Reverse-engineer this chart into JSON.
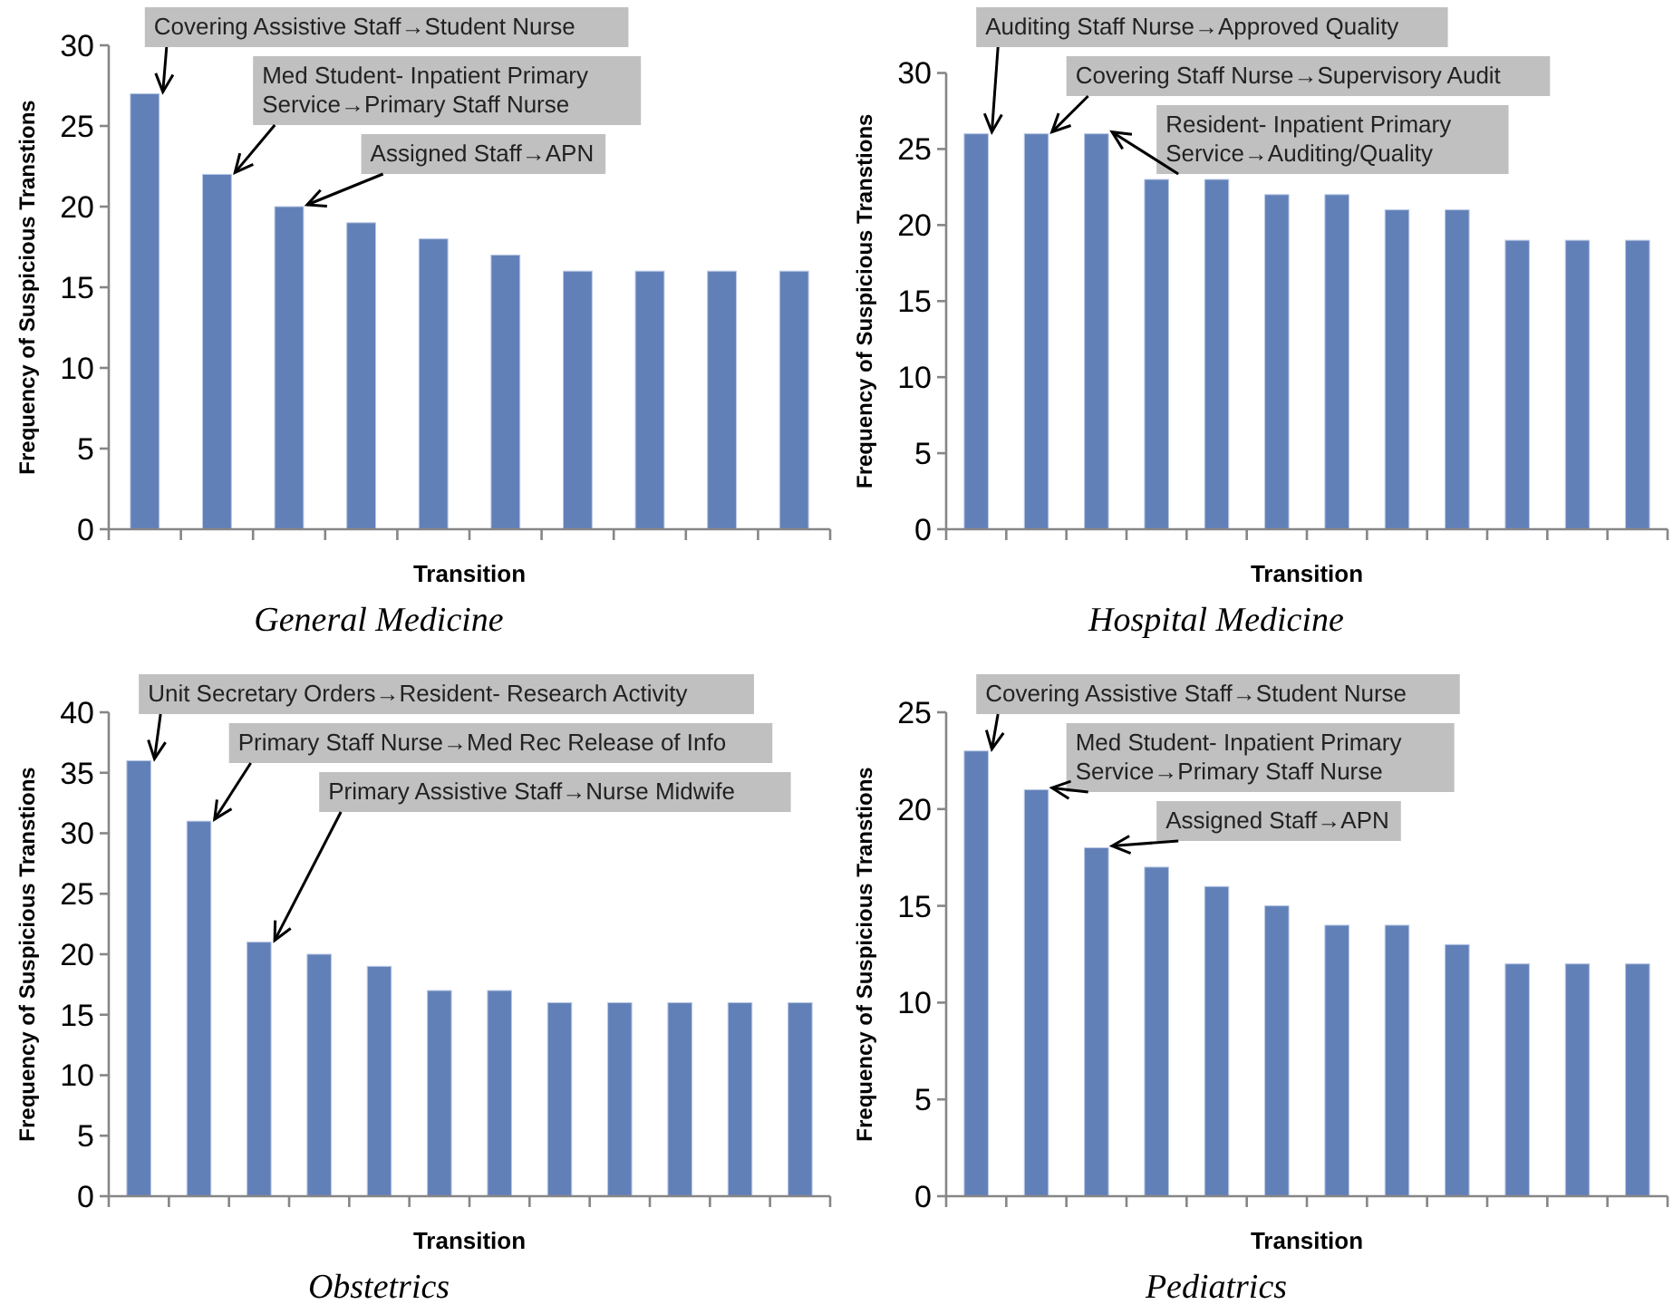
{
  "chart_data": [
    {
      "type": "bar",
      "title": "General Medicine",
      "xlabel": "Transition",
      "ylabel": "Frequency of Suspicious Transtions",
      "categories": [
        null,
        null,
        null,
        null,
        null,
        null,
        null,
        null,
        null,
        null
      ],
      "values": [
        27,
        22,
        20,
        19,
        18,
        17,
        16,
        16,
        16,
        16
      ],
      "color": "#6280b8",
      "ylim": [
        0,
        30
      ],
      "yticks": [
        0,
        5,
        10,
        15,
        20,
        25,
        30
      ],
      "annotations": [
        "Covering Assistive Staff→Student Nurse",
        "Med Student- Inpatient Primary Service→Primary Staff Nurse",
        "Assigned Staff→APN"
      ]
    },
    {
      "type": "bar",
      "title": "Hospital Medicine",
      "xlabel": "Transition",
      "ylabel": "Frequency of Suspicious Transtions",
      "categories": [
        null,
        null,
        null,
        null,
        null,
        null,
        null,
        null,
        null,
        null,
        null,
        null
      ],
      "values": [
        26,
        26,
        26,
        23,
        23,
        22,
        22,
        21,
        21,
        19,
        19,
        19
      ],
      "color": "#6280b8",
      "ylim": [
        0,
        30
      ],
      "yticks": [
        0,
        5,
        10,
        15,
        20,
        25,
        30
      ],
      "annotations": [
        "Auditing Staff Nurse→Approved Quality",
        "Covering Staff Nurse→Supervisory Audit",
        "Resident- Inpatient Primary Service→Auditing/Quality"
      ]
    },
    {
      "type": "bar",
      "title": "Obstetrics",
      "xlabel": "Transition",
      "ylabel": "Frequency of Suspicious Transtions",
      "categories": [
        null,
        null,
        null,
        null,
        null,
        null,
        null,
        null,
        null,
        null,
        null,
        null
      ],
      "values": [
        36,
        31,
        21,
        20,
        19,
        17,
        17,
        16,
        16,
        16,
        16,
        16
      ],
      "color": "#6280b8",
      "ylim": [
        0,
        40
      ],
      "yticks": [
        0,
        5,
        10,
        15,
        20,
        25,
        30,
        35,
        40
      ],
      "annotations": [
        "Unit Secretary Orders→Resident- Research Activity",
        "Primary Staff Nurse→Med Rec Release of Info",
        "Primary Assistive Staff→Nurse Midwife"
      ]
    },
    {
      "type": "bar",
      "title": "Pediatrics",
      "xlabel": "Transition",
      "ylabel": "Frequency of Suspicious Transtions",
      "categories": [
        null,
        null,
        null,
        null,
        null,
        null,
        null,
        null,
        null,
        null,
        null,
        null
      ],
      "values": [
        23,
        21,
        18,
        17,
        16,
        15,
        14,
        14,
        13,
        12,
        12,
        12
      ],
      "color": "#6280b8",
      "ylim": [
        0,
        25
      ],
      "yticks": [
        0,
        5,
        10,
        15,
        20,
        25
      ],
      "annotations": [
        "Covering Assistive Staff→Student Nurse",
        "Med Student- Inpatient Primary Service→Primary Staff Nurse",
        "Assigned Staff→APN"
      ]
    }
  ]
}
